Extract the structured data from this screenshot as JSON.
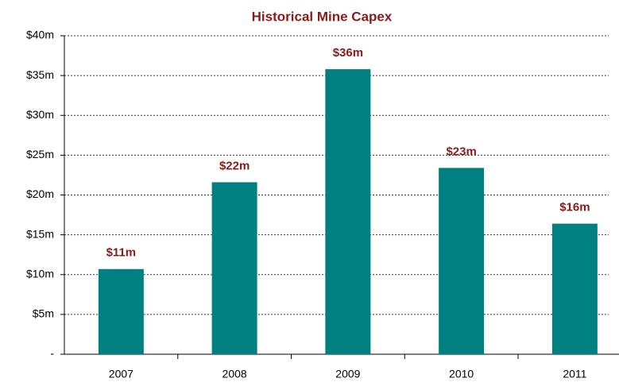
{
  "chart_data": {
    "type": "bar",
    "title": "Historical Mine Capex",
    "categories": [
      "2007",
      "2008",
      "2009",
      "2010",
      "2011"
    ],
    "values": [
      10.7,
      21.6,
      35.8,
      23.4,
      16.4
    ],
    "value_labels": [
      "$11m",
      "$22m",
      "$36m",
      "$23m",
      "$16m"
    ],
    "color": "#008080",
    "ylim": [
      0,
      40
    ],
    "yticks": [
      {
        "value": 0,
        "label": "-"
      },
      {
        "value": 5,
        "label": "$5m"
      },
      {
        "value": 10,
        "label": "$10m"
      },
      {
        "value": 15,
        "label": "$15m"
      },
      {
        "value": 20,
        "label": "$20m"
      },
      {
        "value": 25,
        "label": "$25m"
      },
      {
        "value": 30,
        "label": "$30m"
      },
      {
        "value": 35,
        "label": "$35m"
      },
      {
        "value": 40,
        "label": "$40m"
      }
    ],
    "grid": true
  }
}
